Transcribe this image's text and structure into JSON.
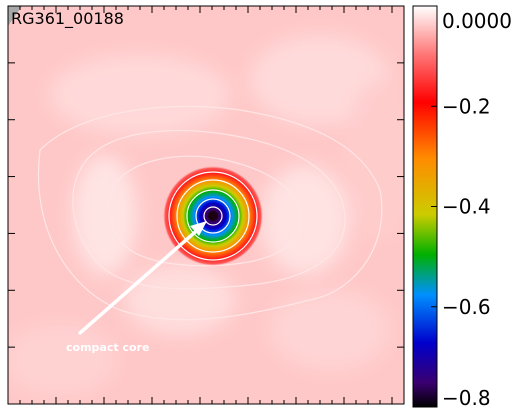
{
  "chart_data": {
    "type": "heatmap",
    "map_label": "RG361_00188",
    "colorbar": {
      "range": [
        -0.8,
        0.0
      ],
      "ticks": [
        0.0,
        -0.2,
        -0.4,
        -0.6,
        -0.8
      ],
      "tick_labels": [
        "0.0000",
        "−0.2",
        "−0.4",
        "−0.6",
        "−0.8"
      ],
      "colormap": [
        "#000000",
        "#3a0070",
        "#0000cc",
        "#0090ff",
        "#00b000",
        "#cccc00",
        "#ff8c00",
        "#ff0000",
        "#ff7777",
        "#ffffff"
      ]
    },
    "field": {
      "background_value": -0.05,
      "core_value": -0.8,
      "contour_levels": [
        -0.1,
        -0.2,
        -0.4,
        -0.6,
        -0.7
      ]
    },
    "annotation": {
      "text": "compact core"
    }
  }
}
